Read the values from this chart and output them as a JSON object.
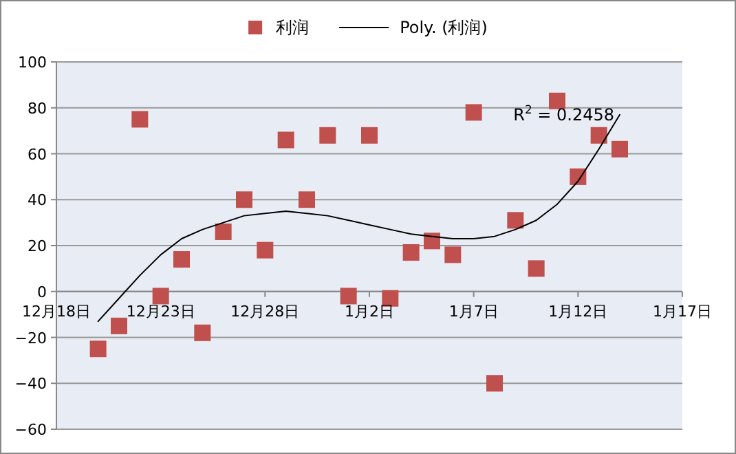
{
  "chart_data": {
    "type": "scatter",
    "categories": [
      "12月18日",
      null,
      null,
      null,
      null,
      "12月23日",
      null,
      null,
      null,
      null,
      "12月28日",
      null,
      null,
      null,
      null,
      "1月2日",
      null,
      null,
      null,
      null,
      "1月7日",
      null,
      null,
      null,
      null,
      "1月12日",
      null,
      null,
      null,
      null,
      "1月17日"
    ],
    "series": [
      {
        "name": "利润",
        "color": "#c0504d",
        "marker": "square",
        "values": [
          null,
          null,
          -25,
          -15,
          75,
          -2,
          14,
          -18,
          26,
          40,
          18,
          66,
          40,
          68,
          -2,
          68,
          -3,
          17,
          22,
          16,
          78,
          -40,
          31,
          10,
          83,
          50,
          68,
          62,
          null,
          null,
          null
        ]
      },
      {
        "name": "Poly. (利润)",
        "color": "#000000",
        "type": "line",
        "marker": "none",
        "line_style": "solid",
        "values": [
          null,
          null,
          -13,
          -3,
          7,
          16,
          23,
          27,
          30,
          33,
          34,
          35,
          34,
          33,
          31,
          29,
          27,
          25,
          24,
          23,
          23,
          24,
          27,
          31,
          38,
          48,
          62,
          77,
          null,
          null,
          null
        ]
      }
    ],
    "ylim": [
      -60,
      100
    ],
    "yticks": [
      -60,
      -40,
      -20,
      0,
      20,
      40,
      60,
      80,
      100
    ],
    "grid": "y",
    "legend": "top",
    "annotations": [
      "R$^{2}$ = 0.2458"
    ]
  }
}
